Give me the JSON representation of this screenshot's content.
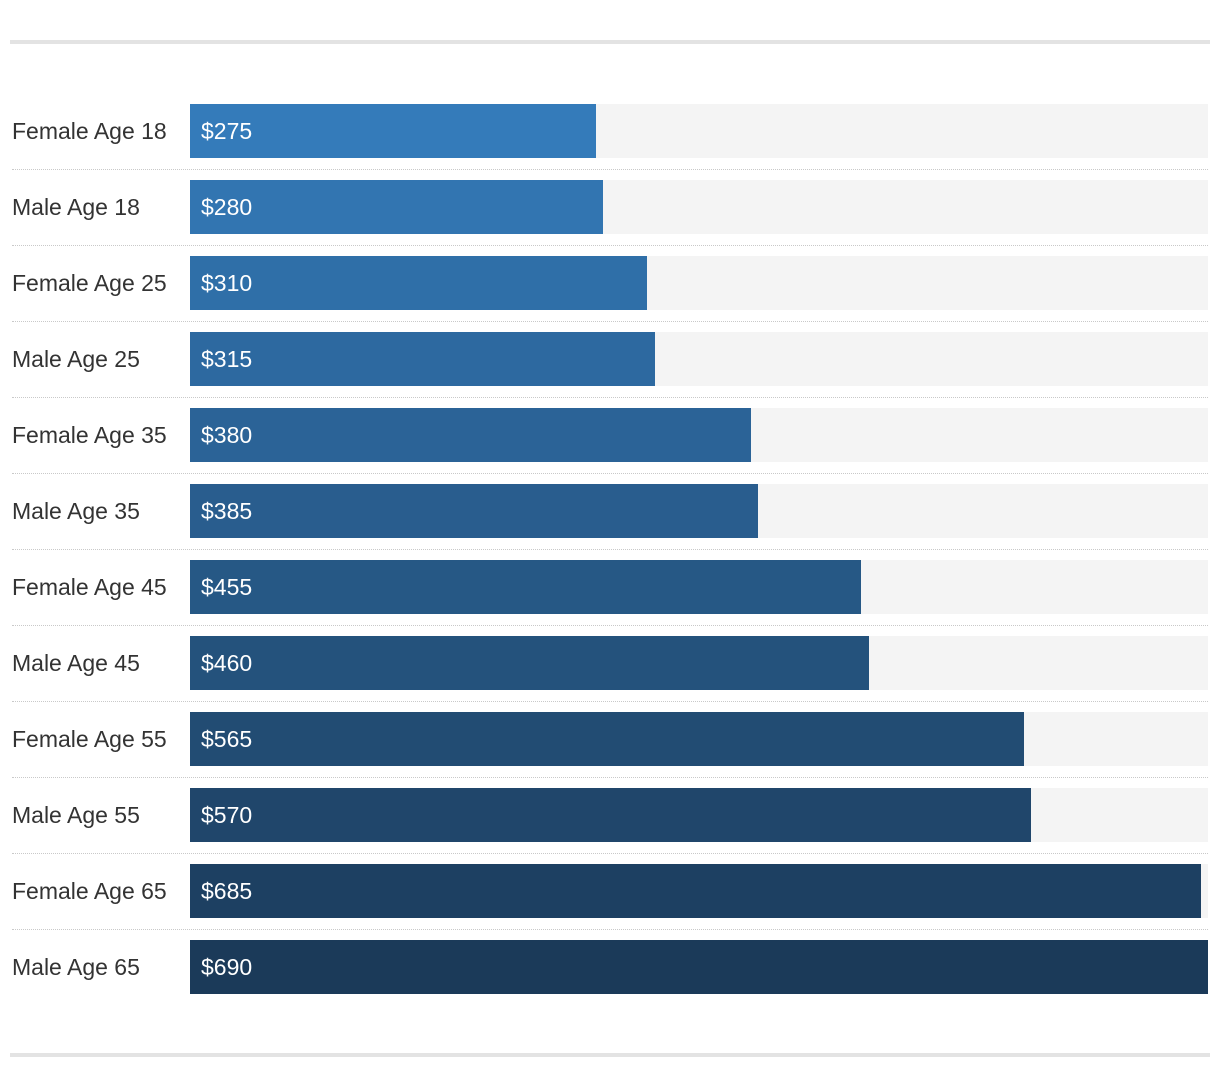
{
  "chart_data": {
    "type": "bar",
    "orientation": "horizontal",
    "categories": [
      "Female Age 18",
      "Male Age 18",
      "Female Age 25",
      "Male Age 25",
      "Female Age 35",
      "Male Age 35",
      "Female Age 45",
      "Male Age 45",
      "Female Age 55",
      "Male Age 55",
      "Female Age 65",
      "Male Age 65"
    ],
    "values": [
      275,
      280,
      310,
      315,
      380,
      385,
      455,
      460,
      565,
      570,
      685,
      690
    ],
    "value_labels": [
      "$275",
      "$280",
      "$310",
      "$315",
      "$380",
      "$385",
      "$455",
      "$460",
      "$565",
      "$570",
      "$685",
      "$690"
    ],
    "xlim": [
      0,
      690
    ],
    "grid": false,
    "legend": "none",
    "colors": {
      "bar_light": "#347bba",
      "bar_dark": "#1b3a59",
      "track": "#f4f4f4",
      "label_text": "#333333",
      "value_text": "#ffffff"
    }
  }
}
